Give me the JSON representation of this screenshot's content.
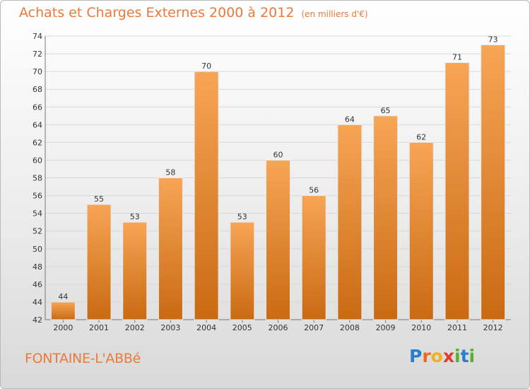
{
  "title": {
    "main": "Achats et Charges Externes 2000 à 2012",
    "unit": "(en milliers d'€)"
  },
  "commune": "FONTAINE-L'ABBé",
  "logo": {
    "letters": [
      "P",
      "r",
      "o",
      "x",
      "i",
      "t",
      "i"
    ],
    "colors": [
      "#2a7fd0",
      "#ea6a1f",
      "#f0b020",
      "#e23a2e",
      "#58b030",
      "#2a7fd0",
      "#58b030"
    ]
  },
  "colors": {
    "bar_light": "#f7a556",
    "bar_dark": "#c96a12",
    "title": "#ea7a3a",
    "grid": "#d8d8d8",
    "axis": "#777777"
  },
  "chart_data": {
    "type": "bar",
    "categories": [
      "2000",
      "2001",
      "2002",
      "2003",
      "2004",
      "2005",
      "2006",
      "2007",
      "2008",
      "2009",
      "2010",
      "2011",
      "2012"
    ],
    "values": [
      44,
      55,
      53,
      58,
      70,
      53,
      60,
      56,
      64,
      65,
      62,
      71,
      73
    ],
    "data_labels": [
      "44",
      "55",
      "53",
      "58",
      "70",
      "53",
      "60",
      "56",
      "64",
      "65",
      "62",
      "71",
      "73"
    ],
    "yticks": [
      "42",
      "44",
      "46",
      "48",
      "50",
      "52",
      "54",
      "56",
      "58",
      "60",
      "62",
      "64",
      "66",
      "68",
      "70",
      "72",
      "74"
    ],
    "ylim": [
      42,
      74
    ],
    "grid": true,
    "title": "Achats et Charges Externes 2000 à 2012",
    "xlabel": "",
    "ylabel": ""
  }
}
